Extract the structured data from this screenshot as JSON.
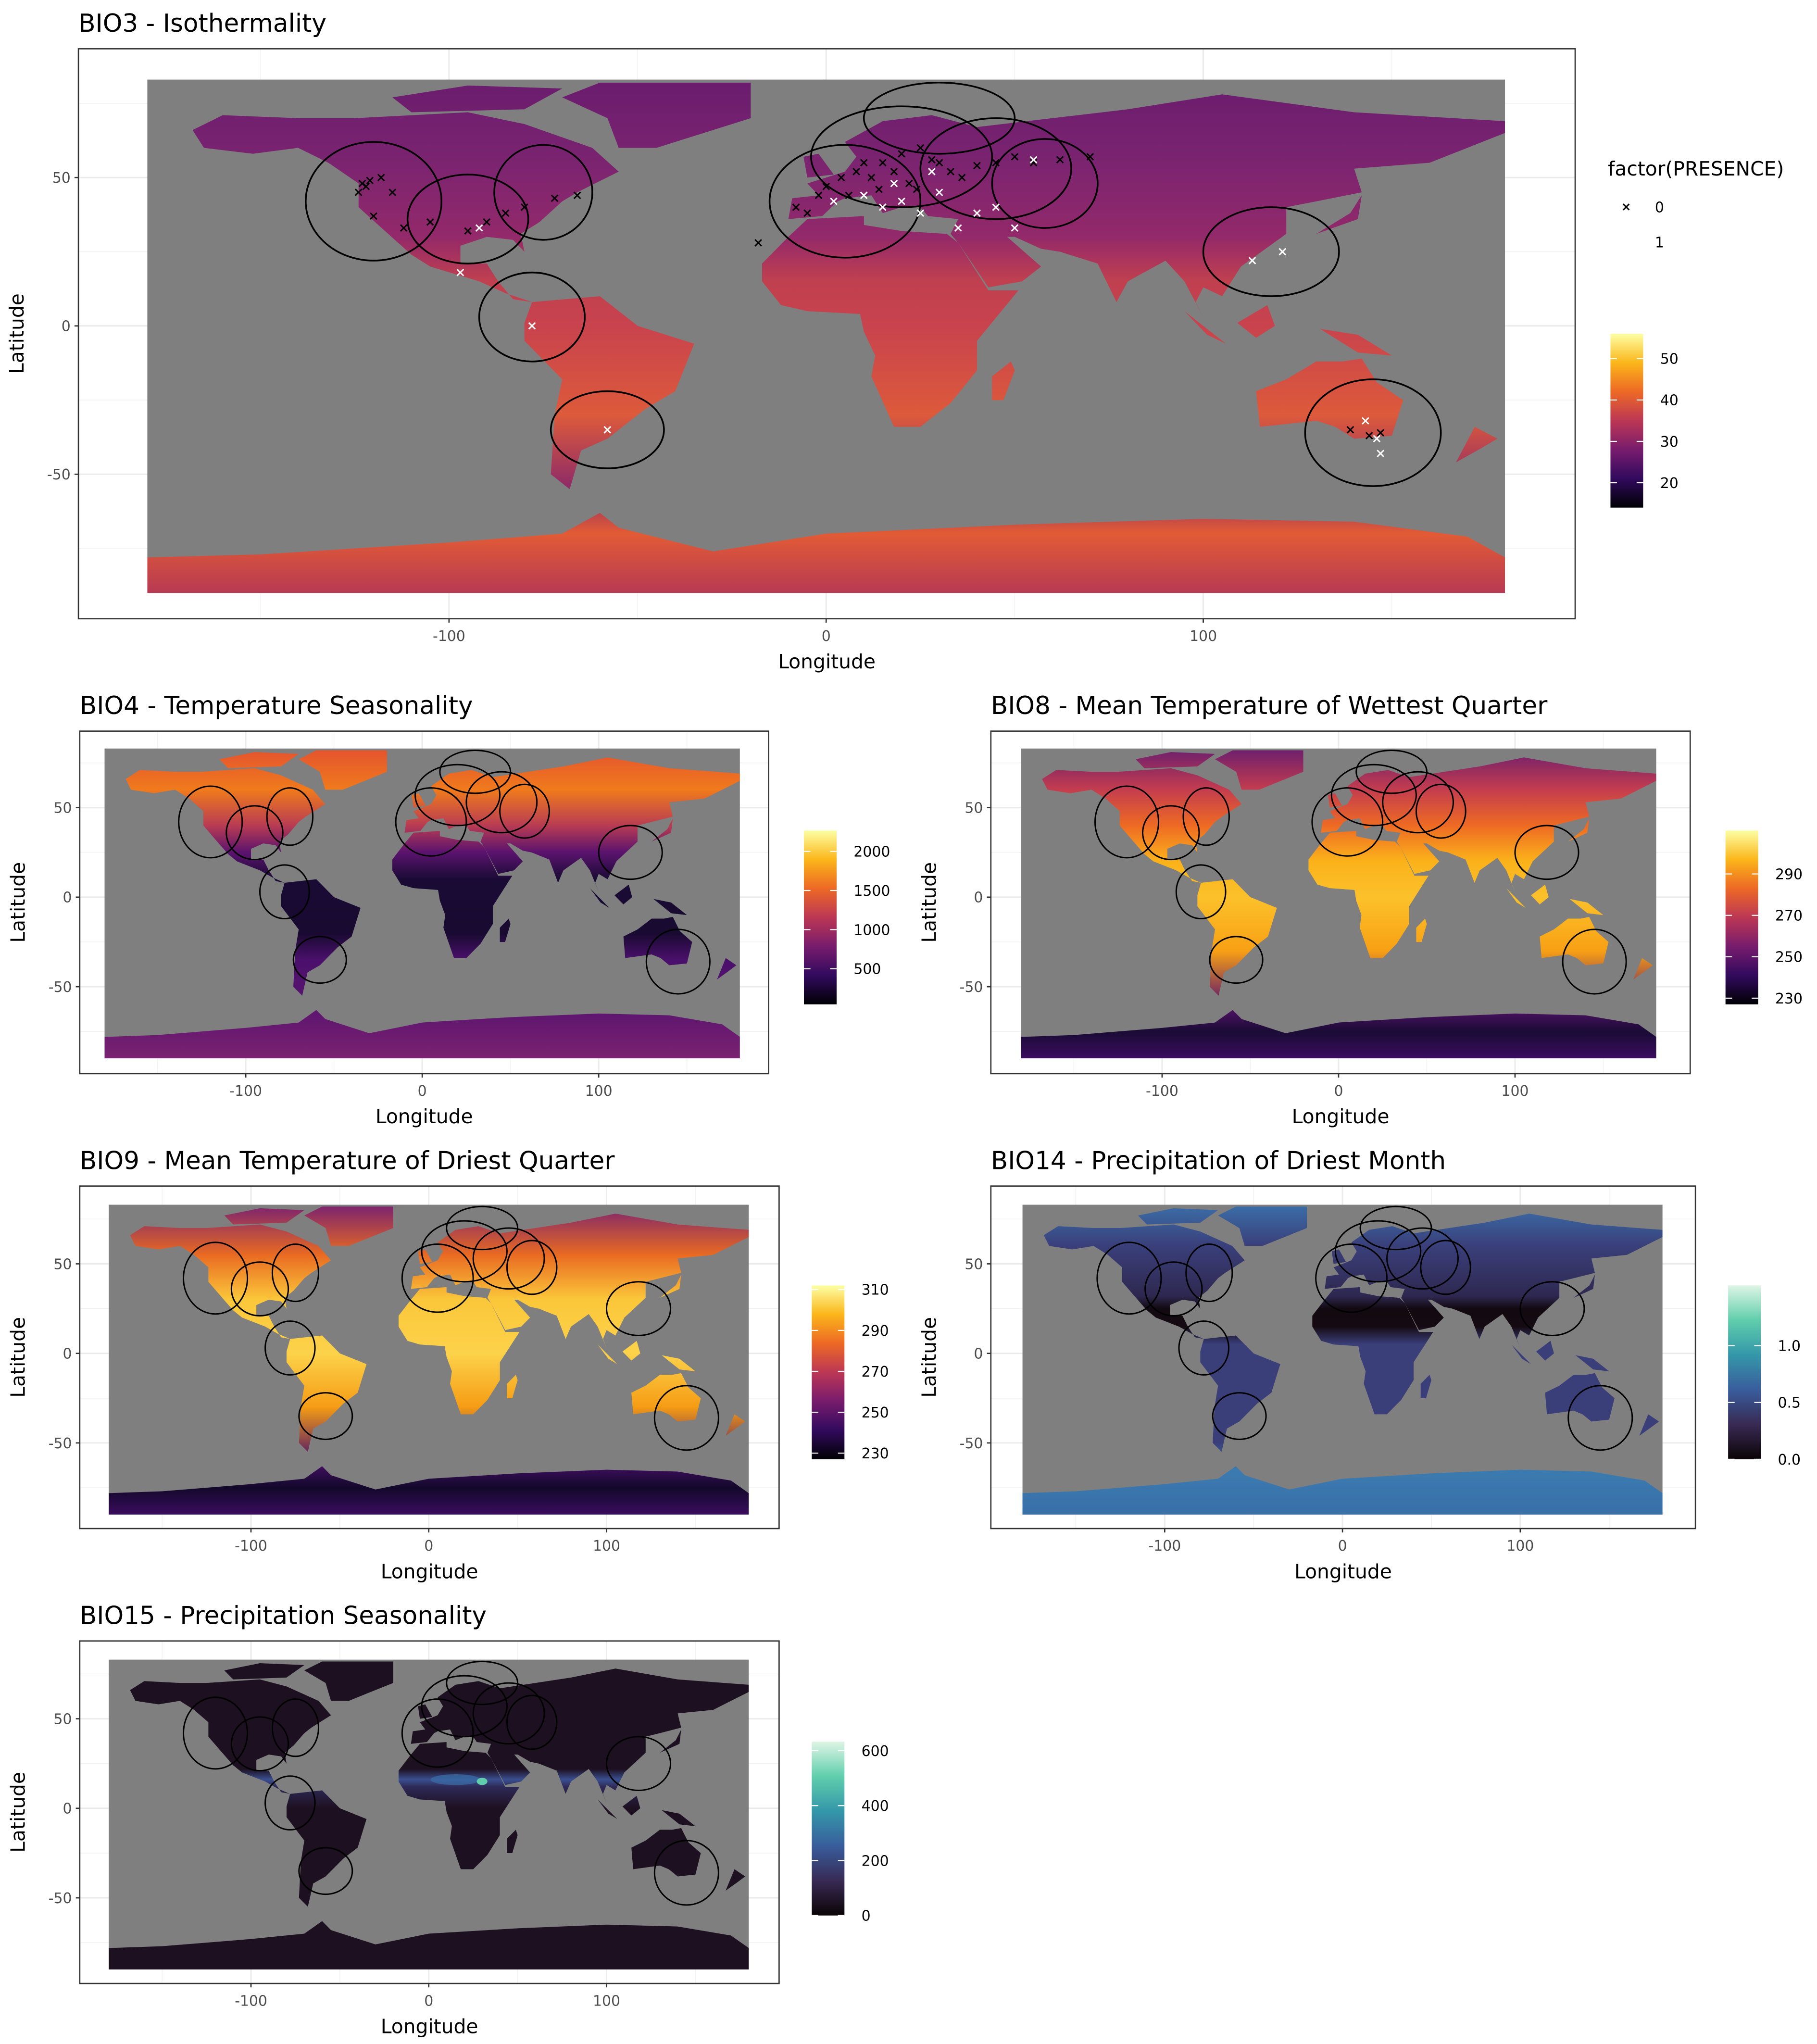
{
  "chart_data": [
    {
      "type": "heatmap",
      "title": "BIO3 - Isothermality",
      "xlabel": "Longitude",
      "ylabel": "Latitude",
      "xticks": [
        -100,
        0,
        100
      ],
      "yticks": [
        50,
        0,
        -50
      ],
      "xlim": [
        -180,
        180
      ],
      "ylim": [
        -90,
        83
      ],
      "grid": true,
      "palette": "inferno",
      "legend": {
        "position": "right",
        "color_ticks": [
          50,
          40,
          30,
          20
        ],
        "color_range": [
          14,
          56
        ],
        "shape_title": "factor(PRESENCE)",
        "shape_entries": [
          "0",
          "1"
        ]
      },
      "points": [
        [
          -123,
          48,
          0
        ],
        [
          -122,
          47,
          0
        ],
        [
          -121,
          49,
          0
        ],
        [
          -124,
          45,
          0
        ],
        [
          -118,
          50,
          0
        ],
        [
          -115,
          45,
          0
        ],
        [
          -120,
          37,
          0
        ],
        [
          -112,
          33,
          0
        ],
        [
          -105,
          35,
          0
        ],
        [
          -95,
          32,
          0
        ],
        [
          -90,
          35,
          0
        ],
        [
          -85,
          38,
          0
        ],
        [
          -80,
          40,
          0
        ],
        [
          -72,
          43,
          0
        ],
        [
          -66,
          44,
          0
        ],
        [
          -92,
          33,
          1
        ],
        [
          -97,
          18,
          1
        ],
        [
          -78,
          0,
          1
        ],
        [
          -58,
          -35,
          1
        ],
        [
          -18,
          28,
          0
        ],
        [
          -8,
          40,
          0
        ],
        [
          -2,
          44,
          0
        ],
        [
          0,
          47,
          0
        ],
        [
          4,
          50,
          0
        ],
        [
          8,
          52,
          0
        ],
        [
          10,
          55,
          0
        ],
        [
          12,
          50,
          0
        ],
        [
          15,
          55,
          0
        ],
        [
          18,
          52,
          0
        ],
        [
          20,
          58,
          0
        ],
        [
          22,
          48,
          0
        ],
        [
          25,
          60,
          0
        ],
        [
          28,
          56,
          0
        ],
        [
          30,
          55,
          0
        ],
        [
          33,
          52,
          0
        ],
        [
          36,
          50,
          0
        ],
        [
          40,
          54,
          0
        ],
        [
          45,
          55,
          0
        ],
        [
          50,
          57,
          0
        ],
        [
          55,
          55,
          0
        ],
        [
          62,
          56,
          0
        ],
        [
          70,
          57,
          0
        ],
        [
          -5,
          38,
          0
        ],
        [
          6,
          44,
          0
        ],
        [
          14,
          46,
          0
        ],
        [
          24,
          46,
          0
        ],
        [
          2,
          42,
          1
        ],
        [
          10,
          44,
          1
        ],
        [
          15,
          40,
          1
        ],
        [
          20,
          42,
          1
        ],
        [
          25,
          38,
          1
        ],
        [
          28,
          52,
          1
        ],
        [
          30,
          45,
          1
        ],
        [
          35,
          33,
          1
        ],
        [
          40,
          38,
          1
        ],
        [
          45,
          40,
          1
        ],
        [
          50,
          33,
          1
        ],
        [
          55,
          56,
          1
        ],
        [
          18,
          48,
          1
        ],
        [
          113,
          22,
          1
        ],
        [
          121,
          25,
          1
        ],
        [
          139,
          -35,
          0
        ],
        [
          144,
          -37,
          0
        ],
        [
          147,
          -36,
          0
        ],
        [
          143,
          -32,
          1
        ],
        [
          146,
          -38,
          1
        ],
        [
          147,
          -43,
          1
        ]
      ]
    },
    {
      "type": "heatmap",
      "title": "BIO4 - Temperature Seasonality",
      "xlabel": "Longitude",
      "ylabel": "Latitude",
      "xticks": [
        -100,
        0,
        100
      ],
      "yticks": [
        50,
        0,
        -50
      ],
      "xlim": [
        -180,
        180
      ],
      "ylim": [
        -90,
        83
      ],
      "grid": true,
      "palette": "inferno",
      "legend": {
        "position": "right",
        "color_ticks": [
          2000,
          1500,
          1000,
          500
        ],
        "color_range": [
          45,
          2267
        ]
      }
    },
    {
      "type": "heatmap",
      "title": "BIO8 - Mean Temperature of Wettest Quarter",
      "xlabel": "Longitude",
      "ylabel": "Latitude",
      "xticks": [
        -100,
        0,
        100
      ],
      "yticks": [
        50,
        0,
        -50
      ],
      "xlim": [
        -180,
        180
      ],
      "ylim": [
        -90,
        83
      ],
      "grid": true,
      "palette": "inferno",
      "legend": {
        "position": "right",
        "color_ticks": [
          290,
          270,
          250,
          230
        ],
        "color_range": [
          227,
          311
        ]
      }
    },
    {
      "type": "heatmap",
      "title": "BIO9 - Mean Temperature of Driest Quarter",
      "xlabel": "Longitude",
      "ylabel": "Latitude",
      "xticks": [
        -100,
        0,
        100
      ],
      "yticks": [
        50,
        0,
        -50
      ],
      "xlim": [
        -180,
        180
      ],
      "ylim": [
        -90,
        83
      ],
      "grid": true,
      "palette": "inferno",
      "legend": {
        "position": "right",
        "color_ticks": [
          310,
          290,
          270,
          250,
          230
        ],
        "color_range": [
          227,
          312
        ]
      }
    },
    {
      "type": "heatmap",
      "title": "BIO14 - Precipitation of Driest Month",
      "xlabel": "Longitude",
      "ylabel": "Latitude",
      "xticks": [
        -100,
        0,
        100
      ],
      "yticks": [
        50,
        0,
        -50
      ],
      "xlim": [
        -180,
        180
      ],
      "ylim": [
        -90,
        83
      ],
      "grid": true,
      "palette": "mako",
      "legend": {
        "position": "right",
        "color_ticks": [
          "1.0",
          "0.5",
          "0.0"
        ],
        "color_range": [
          0,
          1.53
        ]
      }
    },
    {
      "type": "heatmap",
      "title": "BIO15 - Precipitation Seasonality",
      "xlabel": "Longitude",
      "ylabel": "Latitude",
      "xticks": [
        -100,
        0,
        100
      ],
      "yticks": [
        50,
        0,
        -50
      ],
      "xlim": [
        -180,
        180
      ],
      "ylim": [
        -90,
        83
      ],
      "grid": true,
      "palette": "mako",
      "legend": {
        "position": "right",
        "color_ticks": [
          600,
          400,
          200,
          0
        ],
        "color_range": [
          0,
          633
        ]
      }
    }
  ],
  "colors": {
    "na_background": "#7f7f7f",
    "range_outline": "#000000",
    "absence_marker": "#000000",
    "presence_marker": "#ffffff"
  }
}
